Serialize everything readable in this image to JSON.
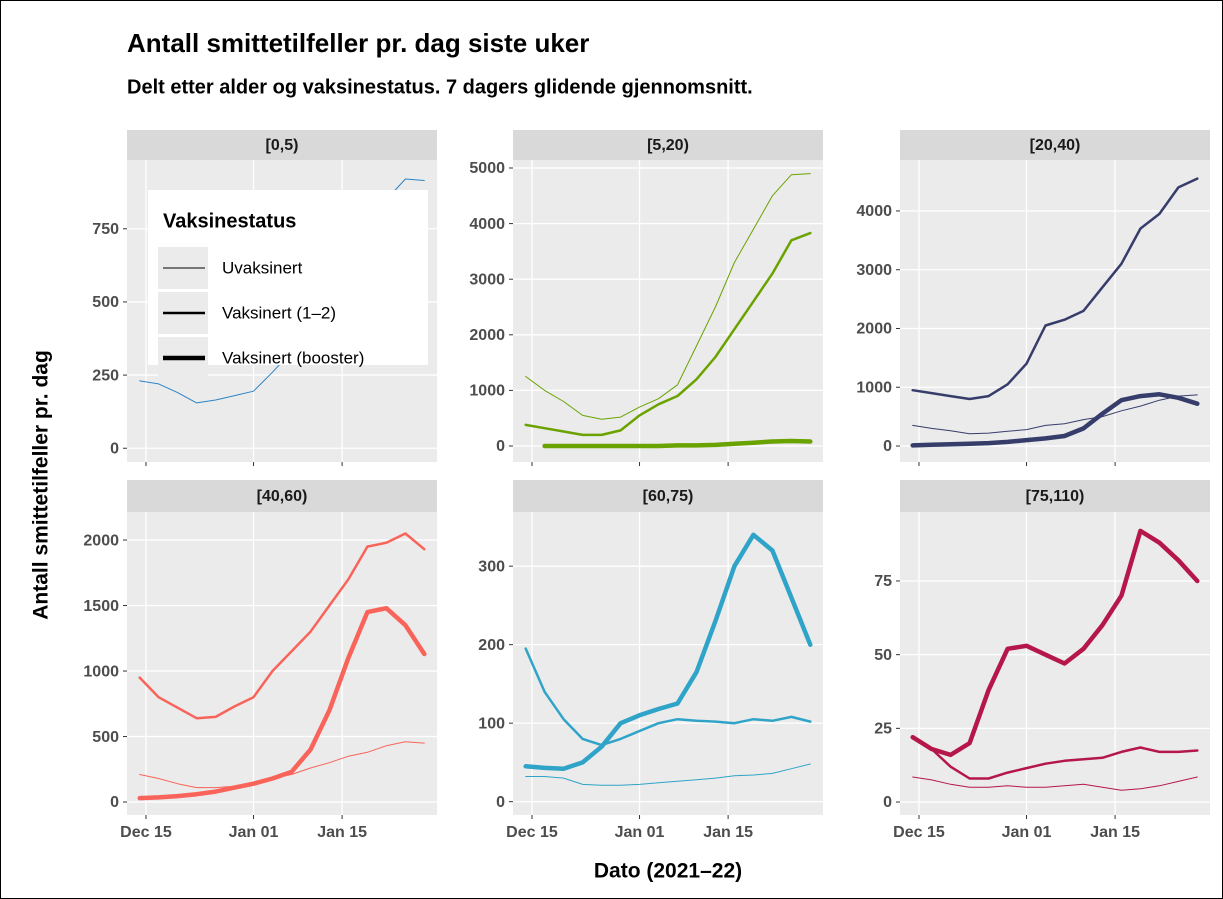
{
  "chart_data": {
    "type": "line",
    "title": "Antall smittetilfeller pr. dag siste uker",
    "subtitle": "Delt etter alder og vaksinestatus. 7 dagers glidende gjennomsnitt.",
    "xlabel": "Dato (2021–22)",
    "ylabel": "Antall smittetilfeller pr. dag",
    "x": [
      "Dec 14",
      "Dec 17",
      "Dec 20",
      "Dec 23",
      "Dec 26",
      "Dec 29",
      "Jan 01",
      "Jan 04",
      "Jan 07",
      "Jan 10",
      "Jan 13",
      "Jan 16",
      "Jan 19",
      "Jan 22",
      "Jan 25",
      "Jan 28"
    ],
    "xlim": [
      "Dec 12",
      "Jan 30"
    ],
    "xticks": [
      "Dec 15",
      "Jan 01",
      "Jan 15"
    ],
    "grid": true,
    "legend": {
      "title": "Vaksinestatus",
      "entries": [
        "Uvaksinert",
        "Vaksinert (1–2)",
        "Vaksinert (booster)"
      ],
      "widths": [
        1,
        2.5,
        4.5
      ],
      "position": "top-left"
    },
    "panels": [
      {
        "title": "[0,5)",
        "color": "#2b84c6",
        "ylim": [
          -47,
          985
        ],
        "yticks": [
          0,
          250,
          500,
          750
        ],
        "series": [
          {
            "name": "Uvaksinert",
            "values": [
              230,
              220,
              190,
              155,
              165,
              180,
              195,
              260,
              330,
              420,
              520,
              620,
              740,
              850,
              920,
              915
            ]
          }
        ]
      },
      {
        "title": "[5,20)",
        "color": "#6aa300",
        "ylim": [
          -288,
          5144
        ],
        "yticks": [
          0,
          1000,
          2000,
          3000,
          4000,
          5000
        ],
        "series": [
          {
            "name": "Uvaksinert",
            "values": [
              1250,
              1000,
              800,
              550,
              480,
              520,
              700,
              850,
              1100,
              1800,
              2500,
              3300,
              3900,
              4500,
              4880,
              4900
            ]
          },
          {
            "name": "Vaksinert (1–2)",
            "values": [
              380,
              320,
              260,
              200,
              200,
              280,
              550,
              750,
              900,
              1200,
              1600,
              2100,
              2600,
              3100,
              3700,
              3830
            ]
          },
          {
            "name": "Vaksinert (booster)",
            "values": [
              null,
              0,
              0,
              0,
              0,
              0,
              0,
              0,
              10,
              10,
              20,
              40,
              60,
              80,
              90,
              80
            ]
          }
        ]
      },
      {
        "title": "[20,40)",
        "color": "#363d6b",
        "ylim": [
          -272,
          4867
        ],
        "yticks": [
          0,
          1000,
          2000,
          3000,
          4000
        ],
        "series": [
          {
            "name": "Uvaksinert",
            "values": [
              350,
              300,
              260,
              210,
              220,
              250,
              280,
              350,
              380,
              450,
              500,
              600,
              680,
              780,
              850,
              870
            ]
          },
          {
            "name": "Vaksinert (1–2)",
            "values": [
              950,
              900,
              850,
              800,
              850,
              1050,
              1400,
              2050,
              2150,
              2300,
              2700,
              3100,
              3700,
              3950,
              4400,
              4550
            ]
          },
          {
            "name": "Vaksinert (booster)",
            "values": [
              10,
              20,
              30,
              40,
              50,
              70,
              100,
              130,
              170,
              300,
              550,
              780,
              850,
              880,
              820,
              720
            ]
          }
        ]
      },
      {
        "title": "[40,60)",
        "color": "#f8645a",
        "ylim": [
          -99,
          2214
        ],
        "yticks": [
          0,
          500,
          1000,
          1500,
          2000
        ],
        "series": [
          {
            "name": "Uvaksinert",
            "values": [
              210,
              180,
              140,
              110,
              110,
              120,
              150,
              180,
              210,
              260,
              300,
              350,
              380,
              430,
              460,
              450
            ]
          },
          {
            "name": "Vaksinert (1–2)",
            "values": [
              950,
              800,
              720,
              640,
              650,
              730,
              800,
              1000,
              1150,
              1300,
              1500,
              1700,
              1950,
              1980,
              2050,
              1930
            ]
          },
          {
            "name": "Vaksinert (booster)",
            "values": [
              30,
              35,
              45,
              60,
              80,
              110,
              140,
              180,
              230,
              400,
              700,
              1100,
              1450,
              1480,
              1350,
              1130
            ]
          }
        ]
      },
      {
        "title": "[60,75)",
        "color": "#2fa4c8",
        "ylim": [
          -17,
          369
        ],
        "yticks": [
          0,
          100,
          200,
          300
        ],
        "series": [
          {
            "name": "Uvaksinert",
            "values": [
              32,
              32,
              30,
              22,
              21,
              21,
              22,
              24,
              26,
              28,
              30,
              33,
              34,
              36,
              42,
              48
            ]
          },
          {
            "name": "Vaksinert (1–2)",
            "values": [
              195,
              140,
              105,
              80,
              72,
              80,
              90,
              100,
              105,
              103,
              102,
              100,
              105,
              103,
              108,
              102
            ]
          },
          {
            "name": "Vaksinert (booster)",
            "values": [
              45,
              43,
              42,
              50,
              70,
              100,
              110,
              118,
              125,
              165,
              230,
              300,
              340,
              320,
              260,
              200
            ]
          }
        ]
      },
      {
        "title": "[75,110)",
        "color": "#b5174a",
        "ylim": [
          -4.4,
          98.4
        ],
        "yticks": [
          0,
          25,
          50,
          75
        ],
        "series": [
          {
            "name": "Uvaksinert",
            "values": [
              8.5,
              7.5,
              6,
              5,
              5,
              5.5,
              5,
              5,
              5.5,
              6,
              5,
              4,
              4.5,
              5.5,
              7,
              8.5
            ]
          },
          {
            "name": "Vaksinert (1–2)",
            "values": [
              22,
              18,
              12,
              8,
              8,
              10,
              11.5,
              13,
              14,
              14.5,
              15,
              17,
              18.5,
              17,
              17,
              17.5
            ]
          },
          {
            "name": "Vaksinert (booster)",
            "values": [
              22,
              18,
              16,
              20,
              38,
              52,
              53,
              50,
              47,
              52,
              60,
              70,
              92,
              88,
              82,
              75
            ]
          }
        ]
      }
    ]
  }
}
